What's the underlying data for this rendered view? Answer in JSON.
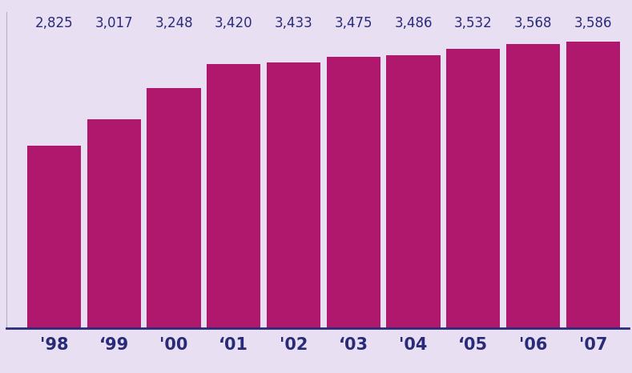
{
  "chart_data": {
    "type": "bar",
    "categories": [
      "'98",
      "‘99",
      "'00",
      "‘01",
      "'02",
      "‘03",
      "'04",
      "‘05",
      "'06",
      "'07"
    ],
    "values": [
      2825,
      3017,
      3248,
      3420,
      3433,
      3475,
      3486,
      3532,
      3568,
      3586
    ],
    "value_labels": [
      "2,825",
      "3,017",
      "3,248",
      "3,420",
      "3,433",
      "3,475",
      "3,486",
      "3,532",
      "3,568",
      "3,586"
    ],
    "color": "#b0186e",
    "ylim": [
      1500,
      3800
    ],
    "yticks": [],
    "grid": false,
    "data_labels": true,
    "tick_labels": "x"
  }
}
